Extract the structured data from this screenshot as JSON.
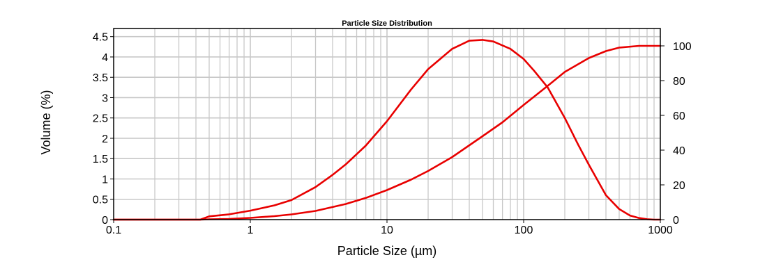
{
  "chart_data": {
    "type": "line",
    "title": "Particle Size Distribution",
    "xlabel": "Particle Size (µm)",
    "ylabel": "Volume (%)",
    "xscale": "log",
    "xlim": [
      0.1,
      1000
    ],
    "ylim": [
      0,
      4.7
    ],
    "y2lim": [
      0,
      110
    ],
    "grid": true,
    "colors": {
      "series": "#e80000",
      "grid": "#c8c8c8",
      "frame": "#000000"
    },
    "x_ticks": [
      {
        "value": 0.1,
        "label": "0.1"
      },
      {
        "value": 1,
        "label": "1"
      },
      {
        "value": 10,
        "label": "10"
      },
      {
        "value": 100,
        "label": "100"
      },
      {
        "value": 1000,
        "label": "1000"
      }
    ],
    "y_ticks": [
      {
        "value": 0,
        "label": "0"
      },
      {
        "value": 0.5,
        "label": "0.5"
      },
      {
        "value": 1,
        "label": "1"
      },
      {
        "value": 1.5,
        "label": "1.5"
      },
      {
        "value": 2,
        "label": "2"
      },
      {
        "value": 2.5,
        "label": "2.5"
      },
      {
        "value": 3,
        "label": "3"
      },
      {
        "value": 3.5,
        "label": "3.5"
      },
      {
        "value": 4,
        "label": "4"
      },
      {
        "value": 4.5,
        "label": "4.5"
      }
    ],
    "y2_ticks": [
      {
        "value": 0,
        "label": "0"
      },
      {
        "value": 20,
        "label": "20"
      },
      {
        "value": 40,
        "label": "40"
      },
      {
        "value": 60,
        "label": "60"
      },
      {
        "value": 80,
        "label": "80"
      },
      {
        "value": 100,
        "label": "100"
      }
    ],
    "series": [
      {
        "axis": "left",
        "x": [
          0.1,
          0.43,
          0.5,
          0.7,
          1.0,
          1.5,
          2.0,
          3.0,
          4.0,
          5.0,
          7.0,
          10,
          15,
          20,
          30,
          40,
          50,
          60,
          80,
          100,
          120,
          150,
          200,
          250,
          300,
          400,
          500,
          600,
          700,
          800,
          900,
          1000
        ],
        "values": [
          0,
          0,
          0.08,
          0.13,
          0.22,
          0.35,
          0.48,
          0.8,
          1.1,
          1.36,
          1.82,
          2.42,
          3.2,
          3.7,
          4.2,
          4.4,
          4.42,
          4.38,
          4.2,
          3.95,
          3.65,
          3.25,
          2.5,
          1.85,
          1.35,
          0.6,
          0.26,
          0.1,
          0.04,
          0.01,
          0.0,
          0.0
        ]
      },
      {
        "axis": "right",
        "x": [
          0.1,
          0.43,
          0.5,
          0.7,
          1.0,
          1.5,
          2.0,
          3.0,
          5.0,
          7.0,
          10,
          15,
          20,
          30,
          50,
          70,
          100,
          150,
          200,
          300,
          400,
          500,
          700,
          1000
        ],
        "values": [
          0,
          0,
          0.2,
          0.4,
          1.0,
          2.0,
          3.0,
          5.0,
          9.0,
          12.5,
          17,
          23,
          28,
          36,
          48,
          56,
          66,
          77,
          85,
          93,
          97,
          99,
          100,
          100
        ]
      }
    ]
  }
}
